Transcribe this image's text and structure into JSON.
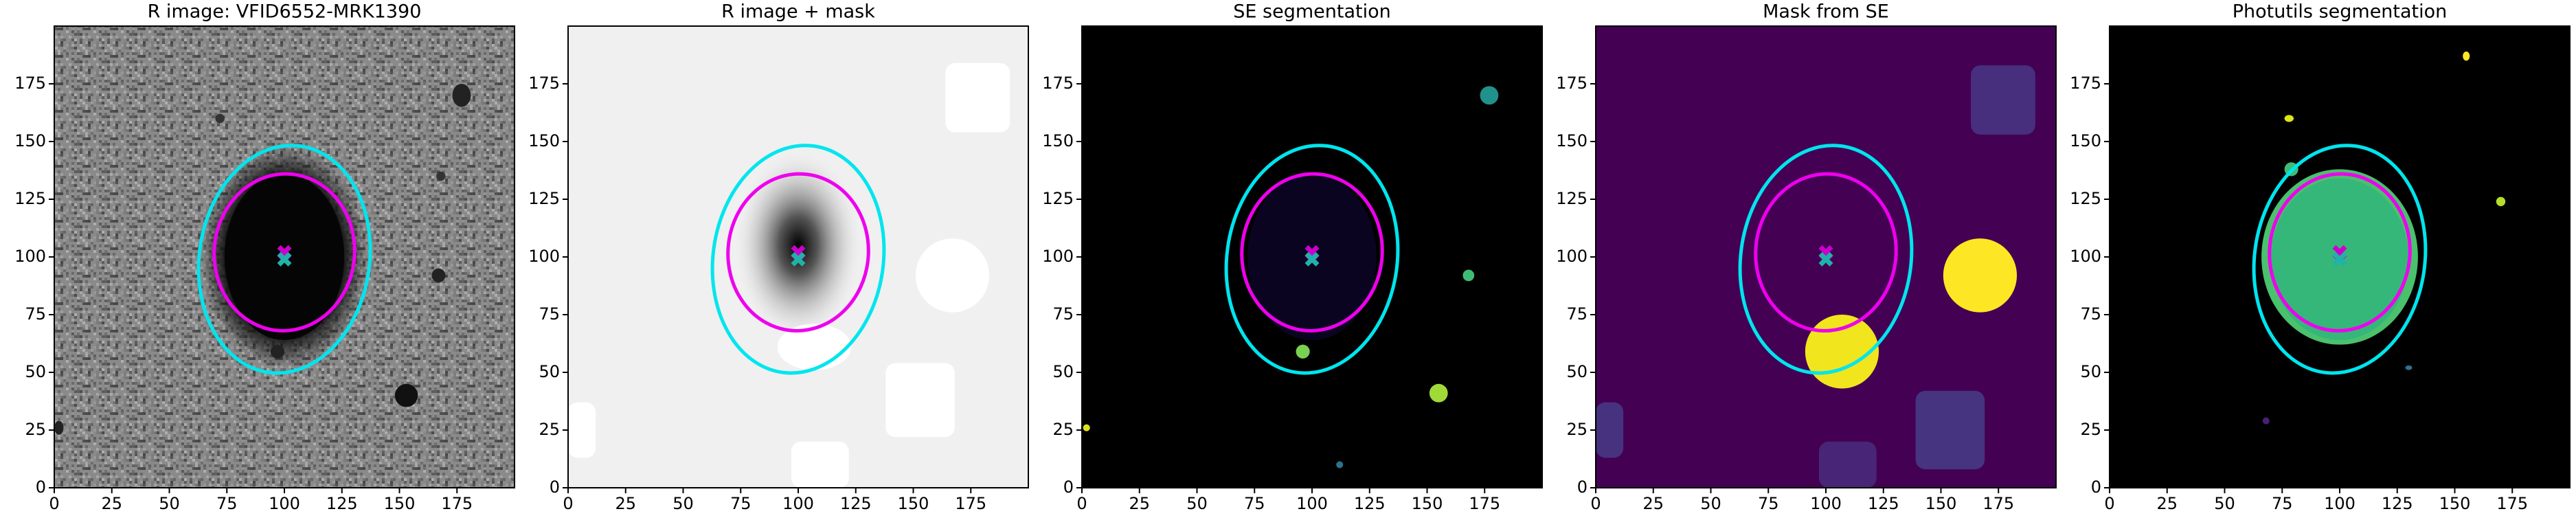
{
  "chart_data": [
    {
      "type": "image",
      "title": "R image: VFID6552-MRK1390",
      "background": "gray-noise",
      "xlim": [
        0,
        200
      ],
      "ylim": [
        0,
        200
      ],
      "xticks": [
        0,
        25,
        50,
        75,
        100,
        125,
        150,
        175
      ],
      "yticks": [
        0,
        25,
        50,
        75,
        100,
        125,
        150,
        175
      ],
      "ellipses": [
        {
          "x": 100,
          "y": 99,
          "width": 74,
          "height": 99,
          "angle": -8,
          "color": "#00e5ee"
        },
        {
          "x": 100,
          "y": 102,
          "width": 61,
          "height": 68,
          "angle": -5,
          "color": "#ee00ee"
        }
      ],
      "markers": [
        {
          "x": 100,
          "y": 102,
          "color": "#cc00cc"
        },
        {
          "x": 100,
          "y": 99,
          "color": "#20b2aa"
        }
      ]
    },
    {
      "type": "image",
      "title": "R image + mask",
      "background": "masked",
      "xlim": [
        0,
        200
      ],
      "ylim": [
        0,
        200
      ],
      "xticks": [
        0,
        25,
        50,
        75,
        100,
        125,
        150,
        175
      ],
      "yticks": [
        0,
        25,
        50,
        75,
        100,
        125,
        150,
        175
      ],
      "ellipses": [
        {
          "x": 100,
          "y": 99,
          "width": 74,
          "height": 99,
          "angle": -8,
          "color": "#00e5ee"
        },
        {
          "x": 100,
          "y": 102,
          "width": 61,
          "height": 68,
          "angle": -5,
          "color": "#ee00ee"
        }
      ],
      "markers": [
        {
          "x": 100,
          "y": 102,
          "color": "#cc00cc"
        },
        {
          "x": 100,
          "y": 99,
          "color": "#20b2aa"
        }
      ]
    },
    {
      "type": "image",
      "title": "SE segmentation",
      "background": "se-seg",
      "xlim": [
        0,
        200
      ],
      "ylim": [
        0,
        200
      ],
      "xticks": [
        0,
        25,
        50,
        75,
        100,
        125,
        150,
        175
      ],
      "yticks": [
        0,
        25,
        50,
        75,
        100,
        125,
        150,
        175
      ],
      "ellipses": [
        {
          "x": 100,
          "y": 99,
          "width": 74,
          "height": 99,
          "angle": -8,
          "color": "#00e5ee"
        },
        {
          "x": 100,
          "y": 102,
          "width": 61,
          "height": 68,
          "angle": -5,
          "color": "#ee00ee"
        }
      ],
      "markers": [
        {
          "x": 100,
          "y": 102,
          "color": "#cc00cc"
        },
        {
          "x": 100,
          "y": 99,
          "color": "#20b2aa"
        }
      ]
    },
    {
      "type": "image",
      "title": "Mask from SE",
      "background": "se-mask",
      "xlim": [
        0,
        200
      ],
      "ylim": [
        0,
        200
      ],
      "xticks": [
        0,
        25,
        50,
        75,
        100,
        125,
        150,
        175
      ],
      "yticks": [
        0,
        25,
        50,
        75,
        100,
        125,
        150,
        175
      ],
      "ellipses": [
        {
          "x": 100,
          "y": 99,
          "width": 74,
          "height": 99,
          "angle": -8,
          "color": "#00e5ee"
        },
        {
          "x": 100,
          "y": 102,
          "width": 61,
          "height": 68,
          "angle": -5,
          "color": "#ee00ee"
        }
      ],
      "markers": [
        {
          "x": 100,
          "y": 102,
          "color": "#cc00cc"
        },
        {
          "x": 100,
          "y": 99,
          "color": "#20b2aa"
        }
      ]
    },
    {
      "type": "image",
      "title": "Photutils segmentation",
      "background": "phot-seg",
      "xlim": [
        0,
        200
      ],
      "ylim": [
        0,
        200
      ],
      "xticks": [
        0,
        25,
        50,
        75,
        100,
        125,
        150,
        175
      ],
      "yticks": [
        0,
        25,
        50,
        75,
        100,
        125,
        150,
        175
      ],
      "ellipses": [
        {
          "x": 100,
          "y": 99,
          "width": 74,
          "height": 99,
          "angle": -8,
          "color": "#00e5ee"
        },
        {
          "x": 100,
          "y": 102,
          "width": 61,
          "height": 68,
          "angle": -5,
          "color": "#ee00ee"
        }
      ],
      "markers": [
        {
          "x": 100,
          "y": 102,
          "color": "#cc00cc"
        },
        {
          "x": 100,
          "y": 99,
          "color": "#20b2aa"
        }
      ]
    }
  ]
}
